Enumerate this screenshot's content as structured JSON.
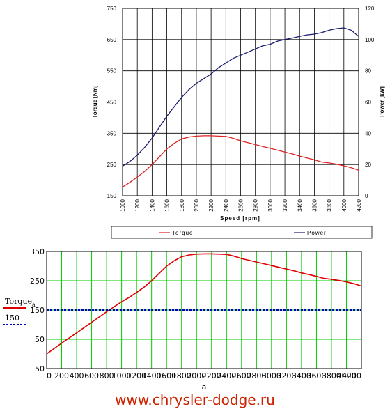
{
  "footer": {
    "website": "www.chrysler-dodge.ru"
  },
  "chart_data": [
    {
      "type": "line",
      "xlabel": "Speed [rpm]",
      "ylabel": "Torque [Nm]",
      "y2label": "Power [kW]",
      "xlim": [
        1000,
        4200
      ],
      "ylim": [
        150,
        750
      ],
      "y2lim": [
        0,
        120
      ],
      "x_ticks": [
        1000,
        1200,
        1400,
        1600,
        1800,
        2000,
        2200,
        2400,
        2600,
        2800,
        3000,
        3200,
        3400,
        3600,
        3800,
        4000,
        4200
      ],
      "y_ticks": [
        150,
        250,
        350,
        450,
        550,
        650,
        750
      ],
      "y_tick_labels": [
        "150",
        "250",
        "350",
        "450",
        "550",
        "650",
        "750"
      ],
      "y2_ticks": [
        0,
        20,
        40,
        60,
        80,
        100,
        120
      ],
      "grid": true,
      "legend_position": "bottom",
      "legend": [
        "Torque",
        "Power"
      ],
      "colors": {
        "torque": "#dd2222",
        "power": "#1a1a6e"
      },
      "series": [
        {
          "name": "Torque",
          "axis": "left",
          "x": [
            1000,
            1100,
            1200,
            1300,
            1400,
            1500,
            1600,
            1700,
            1800,
            1900,
            2000,
            2100,
            2200,
            2300,
            2400,
            2500,
            2600,
            2700,
            2800,
            2900,
            3000,
            3100,
            3200,
            3300,
            3400,
            3500,
            3600,
            3700,
            3800,
            3900,
            4000,
            4100,
            4200
          ],
          "values": [
            178,
            193,
            210,
            228,
            250,
            275,
            300,
            318,
            332,
            338,
            341,
            342,
            342,
            341,
            340,
            334,
            326,
            320,
            314,
            308,
            302,
            296,
            290,
            284,
            277,
            271,
            265,
            258,
            255,
            251,
            246,
            240,
            232
          ]
        },
        {
          "name": "Power",
          "axis": "right",
          "x": [
            1000,
            1100,
            1200,
            1300,
            1400,
            1500,
            1600,
            1700,
            1800,
            1900,
            2000,
            2100,
            2200,
            2300,
            2400,
            2500,
            2600,
            2700,
            2800,
            2900,
            3000,
            3100,
            3200,
            3300,
            3400,
            3500,
            3600,
            3700,
            3800,
            3900,
            4000,
            4100,
            4200
          ],
          "values": [
            19,
            22,
            26,
            31,
            37,
            44,
            51,
            57,
            63,
            68,
            72,
            75,
            78,
            82,
            85,
            88,
            90,
            92,
            94,
            96,
            97,
            99,
            100,
            101,
            102,
            103,
            103.5,
            104.5,
            106,
            107,
            107.5,
            106,
            102
          ]
        }
      ]
    },
    {
      "type": "line",
      "xlabel": "a",
      "xlim": [
        0,
        4200
      ],
      "ylim": [
        -50,
        350
      ],
      "x_ticks": [
        0,
        200,
        400,
        600,
        800,
        1000,
        1200,
        1400,
        1600,
        1800,
        2000,
        2200,
        2400,
        2600,
        2800,
        3000,
        3200,
        3400,
        3600,
        3800,
        4000,
        4200
      ],
      "y_ticks": [
        -50,
        50,
        150,
        250,
        350
      ],
      "y_tick_labels": [
        "−50",
        "50",
        "150",
        "250",
        "350"
      ],
      "grid": true,
      "legend_position": "left",
      "legend": [
        "Torque",
        "150"
      ],
      "legend_subscript": "a",
      "colors": {
        "torque": "#dd0000",
        "constant": "#0000bb",
        "grid": "#00cc00"
      },
      "series": [
        {
          "name": "Torque",
          "x": [
            0,
            200,
            400,
            600,
            800,
            1000,
            1100,
            1200,
            1300,
            1400,
            1500,
            1600,
            1700,
            1800,
            1900,
            2000,
            2100,
            2200,
            2300,
            2400,
            2500,
            2600,
            2700,
            2800,
            2900,
            3000,
            3100,
            3200,
            3300,
            3400,
            3500,
            3600,
            3700,
            3800,
            3900,
            4000,
            4100,
            4200
          ],
          "values": [
            0,
            37,
            72,
            108,
            144,
            178,
            193,
            210,
            228,
            250,
            275,
            300,
            318,
            332,
            338,
            341,
            342,
            342,
            341,
            340,
            334,
            326,
            320,
            314,
            308,
            302,
            296,
            290,
            284,
            277,
            271,
            265,
            258,
            255,
            251,
            246,
            240,
            232
          ]
        },
        {
          "name": "150",
          "x": [
            0,
            4200
          ],
          "values": [
            150,
            150
          ]
        }
      ]
    }
  ]
}
